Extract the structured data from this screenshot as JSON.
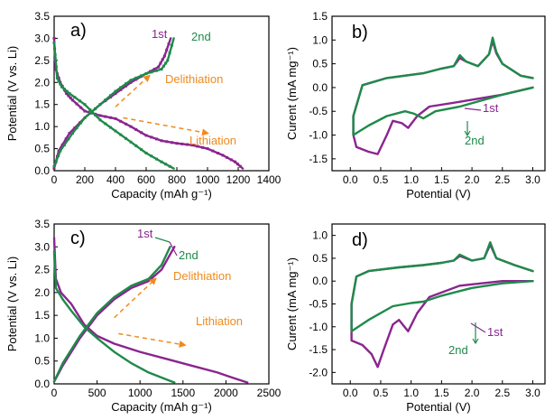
{
  "colors": {
    "first": "#8a258f",
    "second": "#1f8a4a",
    "annot": "#f08a1c",
    "axis": "#000000"
  },
  "chart_data": [
    {
      "panel": "a)",
      "type": "line",
      "xlabel": "Capacity (mAh g⁻¹)",
      "ylabel": "Potential (V vs. Li)",
      "xlim": [
        0,
        1400
      ],
      "ylim": [
        0,
        3.5
      ],
      "xticks": [
        0,
        200,
        400,
        600,
        800,
        1000,
        1200,
        1400
      ],
      "yticks": [
        0.0,
        0.5,
        1.0,
        1.5,
        2.0,
        2.5,
        3.0,
        3.5
      ],
      "series": [
        {
          "name": "1st",
          "color": "first",
          "markers": true,
          "segments": [
            [
              [
                0,
                3.0
              ],
              [
                10,
                2.3
              ],
              [
                40,
                2.0
              ],
              [
                80,
                1.75
              ],
              [
                120,
                1.6
              ],
              [
                200,
                1.35
              ],
              [
                300,
                1.25
              ],
              [
                400,
                1.18
              ],
              [
                500,
                1.0
              ],
              [
                600,
                0.8
              ],
              [
                700,
                0.68
              ],
              [
                800,
                0.62
              ],
              [
                900,
                0.58
              ],
              [
                1000,
                0.5
              ],
              [
                1100,
                0.35
              ],
              [
                1180,
                0.2
              ],
              [
                1230,
                0.05
              ]
            ],
            [
              [
                0,
                0.05
              ],
              [
                30,
                0.45
              ],
              [
                100,
                0.85
              ],
              [
                200,
                1.2
              ],
              [
                300,
                1.5
              ],
              [
                400,
                1.75
              ],
              [
                500,
                2.0
              ],
              [
                600,
                2.2
              ],
              [
                680,
                2.35
              ],
              [
                720,
                2.6
              ],
              [
                760,
                3.0
              ]
            ]
          ]
        },
        {
          "name": "2nd",
          "color": "second",
          "markers": true,
          "segments": [
            [
              [
                0,
                2.9
              ],
              [
                20,
                2.1
              ],
              [
                50,
                1.9
              ],
              [
                100,
                1.75
              ],
              [
                200,
                1.5
              ],
              [
                300,
                1.15
              ],
              [
                400,
                0.9
              ],
              [
                500,
                0.65
              ],
              [
                600,
                0.4
              ],
              [
                700,
                0.2
              ],
              [
                780,
                0.05
              ]
            ],
            [
              [
                0,
                0.1
              ],
              [
                40,
                0.45
              ],
              [
                120,
                0.85
              ],
              [
                200,
                1.2
              ],
              [
                300,
                1.5
              ],
              [
                400,
                1.8
              ],
              [
                500,
                2.05
              ],
              [
                600,
                2.2
              ],
              [
                700,
                2.3
              ],
              [
                740,
                2.5
              ],
              [
                780,
                3.0
              ]
            ]
          ]
        }
      ],
      "legend": [
        {
          "text": "1st",
          "color": "first"
        },
        {
          "text": "2nd",
          "color": "second"
        }
      ],
      "annotations": [
        {
          "text": "Delithiation",
          "color": "annot",
          "arrow": [
            [
              400,
              1.45
            ],
            [
              620,
              2.15
            ]
          ]
        },
        {
          "text": "Lithiation",
          "color": "annot",
          "arrow": [
            [
              450,
              1.2
            ],
            [
              1000,
              0.85
            ]
          ]
        }
      ]
    },
    {
      "panel": "b)",
      "type": "line",
      "xlabel": "Potential (V)",
      "ylabel": "Curent (mA mg⁻¹)",
      "xlim": [
        -0.3,
        3.2
      ],
      "ylim": [
        -1.75,
        1.5
      ],
      "xticks": [
        0.0,
        0.5,
        1.0,
        1.5,
        2.0,
        2.5,
        3.0
      ],
      "yticks": [
        -1.5,
        -1.0,
        -0.5,
        0.0,
        0.5,
        1.0,
        1.5
      ],
      "series": [
        {
          "name": "1st",
          "color": "first",
          "markers": false,
          "segments": [
            [
              [
                3.0,
                0.2
              ],
              [
                2.8,
                0.25
              ],
              [
                2.5,
                0.5
              ],
              [
                2.4,
                0.72
              ],
              [
                2.34,
                0.98
              ],
              [
                2.28,
                0.7
              ],
              [
                2.1,
                0.45
              ],
              [
                1.9,
                0.55
              ],
              [
                1.8,
                0.62
              ],
              [
                1.7,
                0.45
              ],
              [
                1.5,
                0.4
              ],
              [
                1.2,
                0.3
              ],
              [
                0.6,
                0.2
              ],
              [
                0.2,
                0.05
              ],
              [
                0.05,
                -0.6
              ],
              [
                0.05,
                -1.0
              ],
              [
                0.1,
                -1.25
              ],
              [
                0.3,
                -1.35
              ],
              [
                0.45,
                -1.4
              ],
              [
                0.6,
                -1.0
              ],
              [
                0.7,
                -0.7
              ],
              [
                0.85,
                -0.75
              ],
              [
                0.95,
                -0.85
              ],
              [
                1.1,
                -0.6
              ],
              [
                1.3,
                -0.4
              ],
              [
                1.8,
                -0.3
              ],
              [
                2.5,
                -0.15
              ],
              [
                3.0,
                0.0
              ]
            ]
          ]
        },
        {
          "name": "2nd",
          "color": "second",
          "markers": false,
          "segments": [
            [
              [
                3.0,
                0.2
              ],
              [
                2.8,
                0.25
              ],
              [
                2.5,
                0.5
              ],
              [
                2.4,
                0.75
              ],
              [
                2.34,
                1.05
              ],
              [
                2.28,
                0.7
              ],
              [
                2.1,
                0.45
              ],
              [
                1.9,
                0.55
              ],
              [
                1.8,
                0.68
              ],
              [
                1.7,
                0.45
              ],
              [
                1.5,
                0.4
              ],
              [
                1.2,
                0.3
              ],
              [
                0.6,
                0.2
              ],
              [
                0.2,
                0.05
              ],
              [
                0.05,
                -0.6
              ],
              [
                0.05,
                -1.0
              ],
              [
                0.3,
                -0.8
              ],
              [
                0.6,
                -0.6
              ],
              [
                0.9,
                -0.5
              ],
              [
                1.05,
                -0.55
              ],
              [
                1.2,
                -0.65
              ],
              [
                1.4,
                -0.5
              ],
              [
                1.8,
                -0.4
              ],
              [
                2.5,
                -0.15
              ],
              [
                3.0,
                0.0
              ]
            ]
          ]
        }
      ],
      "legend": [
        {
          "text": "1st",
          "color": "first"
        },
        {
          "text": "2nd",
          "color": "second"
        }
      ],
      "annotations": []
    },
    {
      "panel": "c)",
      "type": "line",
      "xlabel": "Capacity (mAh g⁻¹)",
      "ylabel": "Potential (V vs. Li)",
      "xlim": [
        0,
        2500
      ],
      "ylim": [
        0,
        3.5
      ],
      "xticks": [
        0,
        500,
        1000,
        1500,
        2000,
        2500
      ],
      "yticks": [
        0.0,
        0.5,
        1.0,
        1.5,
        2.0,
        2.5,
        3.0,
        3.5
      ],
      "series": [
        {
          "name": "1st",
          "color": "first",
          "markers": false,
          "segments": [
            [
              [
                0,
                3.2
              ],
              [
                20,
                2.3
              ],
              [
                80,
                2.0
              ],
              [
                200,
                1.75
              ],
              [
                350,
                1.3
              ],
              [
                500,
                1.05
              ],
              [
                700,
                0.88
              ],
              [
                1000,
                0.7
              ],
              [
                1300,
                0.55
              ],
              [
                1600,
                0.4
              ],
              [
                1900,
                0.25
              ],
              [
                2100,
                0.12
              ],
              [
                2250,
                0.03
              ]
            ],
            [
              [
                0,
                0.05
              ],
              [
                100,
                0.4
              ],
              [
                300,
                1.0
              ],
              [
                500,
                1.5
              ],
              [
                700,
                1.85
              ],
              [
                900,
                2.1
              ],
              [
                1100,
                2.25
              ],
              [
                1250,
                2.5
              ],
              [
                1400,
                3.0
              ]
            ]
          ]
        },
        {
          "name": "2nd",
          "color": "second",
          "markers": false,
          "segments": [
            [
              [
                0,
                2.9
              ],
              [
                20,
                2.1
              ],
              [
                100,
                1.85
              ],
              [
                200,
                1.6
              ],
              [
                350,
                1.25
              ],
              [
                500,
                1.0
              ],
              [
                700,
                0.7
              ],
              [
                900,
                0.45
              ],
              [
                1100,
                0.25
              ],
              [
                1300,
                0.1
              ],
              [
                1400,
                0.03
              ]
            ],
            [
              [
                0,
                0.05
              ],
              [
                100,
                0.45
              ],
              [
                300,
                1.05
              ],
              [
                500,
                1.55
              ],
              [
                700,
                1.9
              ],
              [
                900,
                2.15
              ],
              [
                1100,
                2.3
              ],
              [
                1250,
                2.6
              ],
              [
                1350,
                3.0
              ]
            ]
          ]
        }
      ],
      "legend": [
        {
          "text": "2nd",
          "color": "second"
        },
        {
          "text": "1st",
          "color": "first"
        }
      ],
      "annotations": [
        {
          "text": "Delithiation",
          "color": "annot",
          "arrow": [
            [
              700,
              1.45
            ],
            [
              1180,
              2.3
            ]
          ]
        },
        {
          "text": "Lithiation",
          "color": "annot",
          "arrow": [
            [
              750,
              1.1
            ],
            [
              1520,
              0.85
            ]
          ]
        }
      ]
    },
    {
      "panel": "d)",
      "type": "line",
      "xlabel": "Potential (V)",
      "ylabel": "Curent (mA mg⁻¹)",
      "xlim": [
        -0.3,
        3.2
      ],
      "ylim": [
        -2.25,
        1.25
      ],
      "xticks": [
        0.0,
        0.5,
        1.0,
        1.5,
        2.0,
        2.5,
        3.0
      ],
      "yticks": [
        -2.0,
        -1.5,
        -1.0,
        -0.5,
        0.0,
        0.5,
        1.0
      ],
      "series": [
        {
          "name": "1st",
          "color": "first",
          "markers": false,
          "segments": [
            [
              [
                3.0,
                0.22
              ],
              [
                2.7,
                0.35
              ],
              [
                2.4,
                0.5
              ],
              [
                2.3,
                0.8
              ],
              [
                2.2,
                0.5
              ],
              [
                2.0,
                0.45
              ],
              [
                1.8,
                0.55
              ],
              [
                1.7,
                0.45
              ],
              [
                1.5,
                0.4
              ],
              [
                1.2,
                0.35
              ],
              [
                0.8,
                0.3
              ],
              [
                0.3,
                0.22
              ],
              [
                0.1,
                0.1
              ],
              [
                0.02,
                -0.5
              ],
              [
                0.02,
                -1.3
              ],
              [
                0.2,
                -1.4
              ],
              [
                0.35,
                -1.6
              ],
              [
                0.45,
                -1.88
              ],
              [
                0.55,
                -1.5
              ],
              [
                0.7,
                -0.95
              ],
              [
                0.8,
                -0.85
              ],
              [
                0.95,
                -1.1
              ],
              [
                1.1,
                -0.7
              ],
              [
                1.3,
                -0.35
              ],
              [
                1.8,
                -0.1
              ],
              [
                2.5,
                0.0
              ],
              [
                3.0,
                0.0
              ]
            ]
          ]
        },
        {
          "name": "2nd",
          "color": "second",
          "markers": false,
          "segments": [
            [
              [
                3.0,
                0.22
              ],
              [
                2.7,
                0.35
              ],
              [
                2.4,
                0.5
              ],
              [
                2.3,
                0.85
              ],
              [
                2.2,
                0.5
              ],
              [
                2.0,
                0.45
              ],
              [
                1.8,
                0.58
              ],
              [
                1.7,
                0.45
              ],
              [
                1.5,
                0.4
              ],
              [
                1.2,
                0.35
              ],
              [
                0.8,
                0.3
              ],
              [
                0.3,
                0.22
              ],
              [
                0.1,
                0.1
              ],
              [
                0.02,
                -0.5
              ],
              [
                0.02,
                -1.1
              ],
              [
                0.3,
                -0.85
              ],
              [
                0.7,
                -0.55
              ],
              [
                1.0,
                -0.48
              ],
              [
                1.2,
                -0.45
              ],
              [
                1.5,
                -0.32
              ],
              [
                2.0,
                -0.15
              ],
              [
                2.5,
                -0.05
              ],
              [
                3.0,
                0.0
              ]
            ]
          ]
        }
      ],
      "legend": [
        {
          "text": "1st",
          "color": "first"
        },
        {
          "text": "2nd",
          "color": "second"
        }
      ],
      "annotations": []
    }
  ]
}
